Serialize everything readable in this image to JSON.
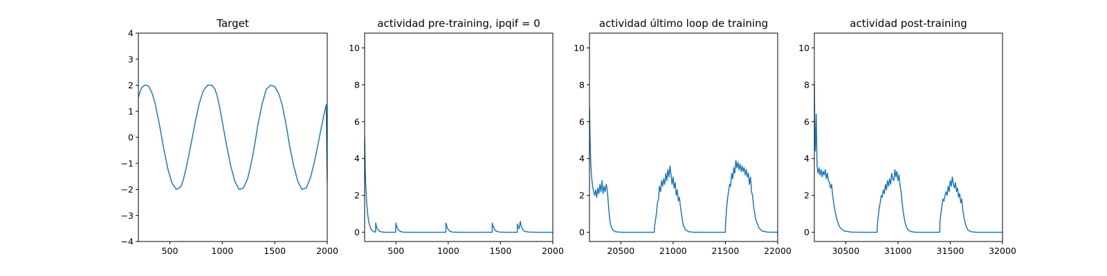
{
  "chart_data": [
    {
      "type": "line",
      "title": "Target",
      "xlabel": "",
      "ylabel": "",
      "xlim": [
        200,
        2000
      ],
      "ylim": [
        -4,
        4
      ],
      "xticks": [
        500,
        1000,
        1500,
        2000
      ],
      "yticks": [
        -4,
        -3,
        -2,
        -1,
        0,
        1,
        2,
        3,
        4
      ],
      "xtick_labels": [
        "500",
        "1000",
        "1500",
        "2000"
      ],
      "ytick_labels": [
        "−4",
        "−3",
        "−2",
        "−1",
        "0",
        "1",
        "2",
        "3",
        "4"
      ],
      "color": "#1f77b4",
      "series": [
        {
          "x": [
            200,
            230,
            260,
            280,
            300,
            330,
            360,
            400,
            440,
            480,
            520,
            560,
            590,
            610,
            630,
            660,
            700,
            740,
            780,
            820,
            860,
            900,
            930,
            950,
            970,
            1000,
            1040,
            1080,
            1120,
            1160,
            1200,
            1240,
            1270,
            1290,
            1310,
            1340,
            1380,
            1420,
            1460,
            1500,
            1540,
            1570,
            1600,
            1620,
            1640,
            1680,
            1720,
            1760,
            1800,
            1840,
            1880,
            1920,
            1950,
            1970,
            1990,
            2000
          ],
          "y": [
            1.55,
            1.9,
            2.0,
            2.0,
            1.95,
            1.7,
            1.3,
            0.5,
            -0.4,
            -1.2,
            -1.75,
            -2.0,
            -1.95,
            -1.85,
            -1.6,
            -1.1,
            -0.3,
            0.55,
            1.3,
            1.8,
            2.0,
            2.0,
            1.85,
            1.6,
            1.25,
            0.6,
            -0.3,
            -1.1,
            -1.7,
            -2.0,
            -1.95,
            -1.6,
            -1.1,
            -0.7,
            -0.25,
            0.5,
            1.3,
            1.85,
            2.0,
            1.95,
            1.65,
            1.25,
            0.65,
            0.2,
            -0.3,
            -1.1,
            -1.7,
            -2.0,
            -1.95,
            -1.55,
            -0.9,
            -0.1,
            0.5,
            0.9,
            1.25,
            -1.75
          ]
        }
      ]
    },
    {
      "type": "line",
      "title": "actividad pre-training, ipqif = 0",
      "xlabel": "",
      "ylabel": "",
      "xlim": [
        200,
        2000
      ],
      "ylim": [
        -0.5,
        10.8
      ],
      "xticks": [
        500,
        1000,
        1500,
        2000
      ],
      "yticks": [
        0,
        2,
        4,
        6,
        8,
        10
      ],
      "xtick_labels": [
        "500",
        "1000",
        "1500",
        "2000"
      ],
      "ytick_labels": [
        "0",
        "2",
        "4",
        "6",
        "8",
        "10"
      ],
      "color": "#1f77b4",
      "series": [
        {
          "x": [
            200,
            205,
            210,
            220,
            230,
            240,
            255,
            270,
            290,
            305,
            306,
            312,
            320,
            335,
            360,
            400,
            497,
            498,
            505,
            515,
            530,
            560,
            600,
            700,
            800,
            900,
            977,
            978,
            985,
            995,
            1010,
            1040,
            1100,
            1200,
            1300,
            1420,
            1421,
            1428,
            1438,
            1455,
            1490,
            1550,
            1600,
            1660,
            1661,
            1668,
            1678,
            1690,
            1693,
            1700,
            1712,
            1730,
            1770,
            1850,
            2000
          ],
          "y": [
            5.2,
            3.6,
            2.6,
            1.6,
            0.95,
            0.55,
            0.25,
            0.1,
            0.03,
            0.01,
            0.5,
            0.35,
            0.2,
            0.08,
            0.02,
            0.0,
            0.0,
            0.5,
            0.35,
            0.2,
            0.08,
            0.01,
            0.0,
            0.0,
            0.0,
            0.0,
            0.0,
            0.5,
            0.35,
            0.2,
            0.07,
            0.01,
            0.0,
            0.0,
            0.0,
            0.0,
            0.5,
            0.35,
            0.2,
            0.07,
            0.01,
            0.0,
            0.0,
            0.0,
            0.45,
            0.3,
            0.2,
            0.6,
            0.45,
            0.3,
            0.15,
            0.05,
            0.01,
            0.0,
            0.0
          ]
        }
      ]
    },
    {
      "type": "line",
      "title": "actividad último loop de training",
      "xlabel": "",
      "ylabel": "",
      "xlim": [
        20200,
        22000
      ],
      "ylim": [
        -0.5,
        10.8
      ],
      "xticks": [
        20500,
        21000,
        21500,
        22000
      ],
      "yticks": [
        0,
        2,
        4,
        6,
        8,
        10
      ],
      "xtick_labels": [
        "20500",
        "21000",
        "21500",
        "22000"
      ],
      "ytick_labels": [
        "0",
        "2",
        "4",
        "6",
        "8",
        "10"
      ],
      "color": "#1f77b4",
      "series": [
        {
          "x": [
            20200,
            20205,
            20212,
            20220,
            20230,
            20240,
            20250,
            20260,
            20270,
            20280,
            20290,
            20300,
            20310,
            20320,
            20330,
            20340,
            20350,
            20360,
            20370,
            20380,
            20390,
            20400,
            20420,
            20450,
            20500,
            20600,
            20700,
            20800,
            20820,
            20821,
            20830,
            20840,
            20850,
            20860,
            20870,
            20880,
            20890,
            20900,
            20910,
            20920,
            20930,
            20940,
            20950,
            20960,
            20970,
            20980,
            20990,
            21000,
            21010,
            21020,
            21030,
            21040,
            21050,
            21060,
            21070,
            21080,
            21090,
            21100,
            21120,
            21150,
            21200,
            21300,
            21400,
            21500,
            21501,
            21510,
            21520,
            21530,
            21540,
            21550,
            21560,
            21570,
            21580,
            21590,
            21600,
            21610,
            21620,
            21630,
            21640,
            21650,
            21660,
            21670,
            21680,
            21690,
            21700,
            21710,
            21720,
            21730,
            21740,
            21750,
            21760,
            21770,
            21790,
            21820,
            21850,
            21900,
            22000
          ],
          "y": [
            6.8,
            5.2,
            3.8,
            3.0,
            2.5,
            2.2,
            2.0,
            2.3,
            1.9,
            2.4,
            2.1,
            2.6,
            2.2,
            2.8,
            2.1,
            2.5,
            2.2,
            2.6,
            2.3,
            1.6,
            0.9,
            0.45,
            0.15,
            0.03,
            0.0,
            0.0,
            0.0,
            0.0,
            0.0,
            0.3,
            0.6,
            1.0,
            1.6,
            1.8,
            2.5,
            2.2,
            2.8,
            2.5,
            2.9,
            2.6,
            3.2,
            2.8,
            3.4,
            3.0,
            3.6,
            3.1,
            2.6,
            3.0,
            2.4,
            2.7,
            2.0,
            2.3,
            1.7,
            1.9,
            1.4,
            1.0,
            0.6,
            0.35,
            0.12,
            0.03,
            0.0,
            0.0,
            0.0,
            0.0,
            0.4,
            1.2,
            1.8,
            2.2,
            2.6,
            2.5,
            3.2,
            2.9,
            3.5,
            3.2,
            3.9,
            3.5,
            3.8,
            3.4,
            3.7,
            3.3,
            3.6,
            3.3,
            3.5,
            3.1,
            3.4,
            3.0,
            3.2,
            2.6,
            3.0,
            2.2,
            2.0,
            1.4,
            0.7,
            0.25,
            0.07,
            0.01,
            0.0
          ]
        }
      ]
    },
    {
      "type": "line",
      "title": "actividad post-training",
      "xlabel": "",
      "ylabel": "",
      "xlim": [
        30200,
        32000
      ],
      "ylim": [
        -0.5,
        10.8
      ],
      "xticks": [
        30500,
        31000,
        31500,
        32000
      ],
      "yticks": [
        0,
        2,
        4,
        6,
        8,
        10
      ],
      "xtick_labels": [
        "30500",
        "31000",
        "31500",
        "32000"
      ],
      "ytick_labels": [
        "0",
        "2",
        "4",
        "6",
        "8",
        "10"
      ],
      "color": "#1f77b4",
      "series": [
        {
          "x": [
            30200,
            30204,
            30210,
            30218,
            30226,
            30235,
            30245,
            30255,
            30265,
            30275,
            30285,
            30295,
            30305,
            30315,
            30325,
            30335,
            30345,
            30355,
            30365,
            30375,
            30390,
            30410,
            30440,
            30480,
            30550,
            30650,
            30750,
            30800,
            30801,
            30810,
            30820,
            30830,
            30840,
            30850,
            30860,
            30870,
            30880,
            30890,
            30900,
            30910,
            30920,
            30930,
            30940,
            30950,
            30960,
            30970,
            30980,
            30990,
            31000,
            31010,
            31020,
            31030,
            31040,
            31050,
            31065,
            31080,
            31100,
            31130,
            31170,
            31250,
            31350,
            31400,
            31401,
            31410,
            31420,
            31430,
            31440,
            31450,
            31460,
            31470,
            31480,
            31490,
            31500,
            31510,
            31520,
            31530,
            31540,
            31550,
            31560,
            31570,
            31580,
            31590,
            31600,
            31610,
            31620,
            31635,
            31650,
            31670,
            31700,
            31750,
            31850,
            32000
          ],
          "y": [
            8.2,
            5.8,
            4.4,
            6.4,
            3.6,
            3.2,
            3.5,
            3.1,
            3.4,
            3.0,
            3.3,
            3.1,
            3.4,
            2.9,
            3.2,
            2.8,
            2.7,
            2.4,
            2.6,
            2.0,
            1.4,
            0.8,
            0.3,
            0.08,
            0.01,
            0.0,
            0.0,
            0.0,
            0.3,
            0.8,
            1.3,
            1.6,
            2.0,
            1.9,
            2.3,
            2.1,
            2.6,
            2.3,
            2.8,
            2.5,
            2.9,
            2.6,
            3.2,
            2.9,
            2.8,
            3.4,
            3.0,
            3.3,
            2.8,
            3.1,
            2.5,
            2.2,
            1.6,
            1.1,
            0.6,
            0.3,
            0.1,
            0.03,
            0.0,
            0.0,
            0.0,
            0.0,
            0.5,
            1.0,
            1.4,
            1.8,
            1.7,
            2.0,
            2.2,
            2.0,
            2.5,
            2.2,
            2.8,
            2.5,
            3.0,
            2.6,
            2.4,
            2.7,
            2.2,
            2.4,
            1.9,
            2.1,
            1.6,
            1.8,
            1.2,
            0.7,
            0.35,
            0.12,
            0.03,
            0.0,
            0.0,
            0.0
          ]
        }
      ]
    }
  ]
}
